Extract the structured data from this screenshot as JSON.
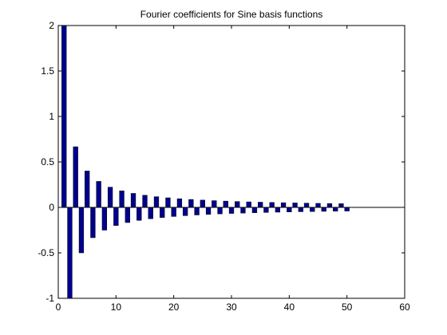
{
  "chart_data": {
    "type": "bar",
    "title": "Fourier coefficients for Sine basis functions",
    "xlabel": "",
    "ylabel": "",
    "xlim": [
      0,
      60
    ],
    "ylim": [
      -1,
      2
    ],
    "xticks": [
      "0",
      "10",
      "20",
      "30",
      "40",
      "50",
      "60"
    ],
    "yticks": [
      "-1",
      "-0.5",
      "0",
      "0.5",
      "1",
      "1.5",
      "2"
    ],
    "grid": false,
    "legend": "none",
    "bar_color": "#00008f",
    "baseline_color": "#000000",
    "x": [
      1,
      2,
      3,
      4,
      5,
      6,
      7,
      8,
      9,
      10,
      11,
      12,
      13,
      14,
      15,
      16,
      17,
      18,
      19,
      20,
      21,
      22,
      23,
      24,
      25,
      26,
      27,
      28,
      29,
      30,
      31,
      32,
      33,
      34,
      35,
      36,
      37,
      38,
      39,
      40,
      41,
      42,
      43,
      44,
      45,
      46,
      47,
      48,
      49,
      50
    ],
    "values": [
      2,
      -1,
      0.6667,
      -0.5,
      0.4,
      -0.3333,
      0.2857,
      -0.25,
      0.2222,
      -0.2,
      0.1818,
      -0.1667,
      0.1538,
      -0.1429,
      0.1333,
      -0.125,
      0.1176,
      -0.1111,
      0.1053,
      -0.1,
      0.0952,
      -0.0909,
      0.087,
      -0.0833,
      0.08,
      -0.0769,
      0.0741,
      -0.0714,
      0.069,
      -0.0667,
      0.0645,
      -0.0625,
      0.0606,
      -0.0588,
      0.0571,
      -0.0556,
      0.0541,
      -0.0526,
      0.0513,
      -0.05,
      0.0488,
      -0.0476,
      0.0465,
      -0.0455,
      0.0444,
      -0.0435,
      0.0426,
      -0.0417,
      0.0408,
      -0.04
    ]
  }
}
